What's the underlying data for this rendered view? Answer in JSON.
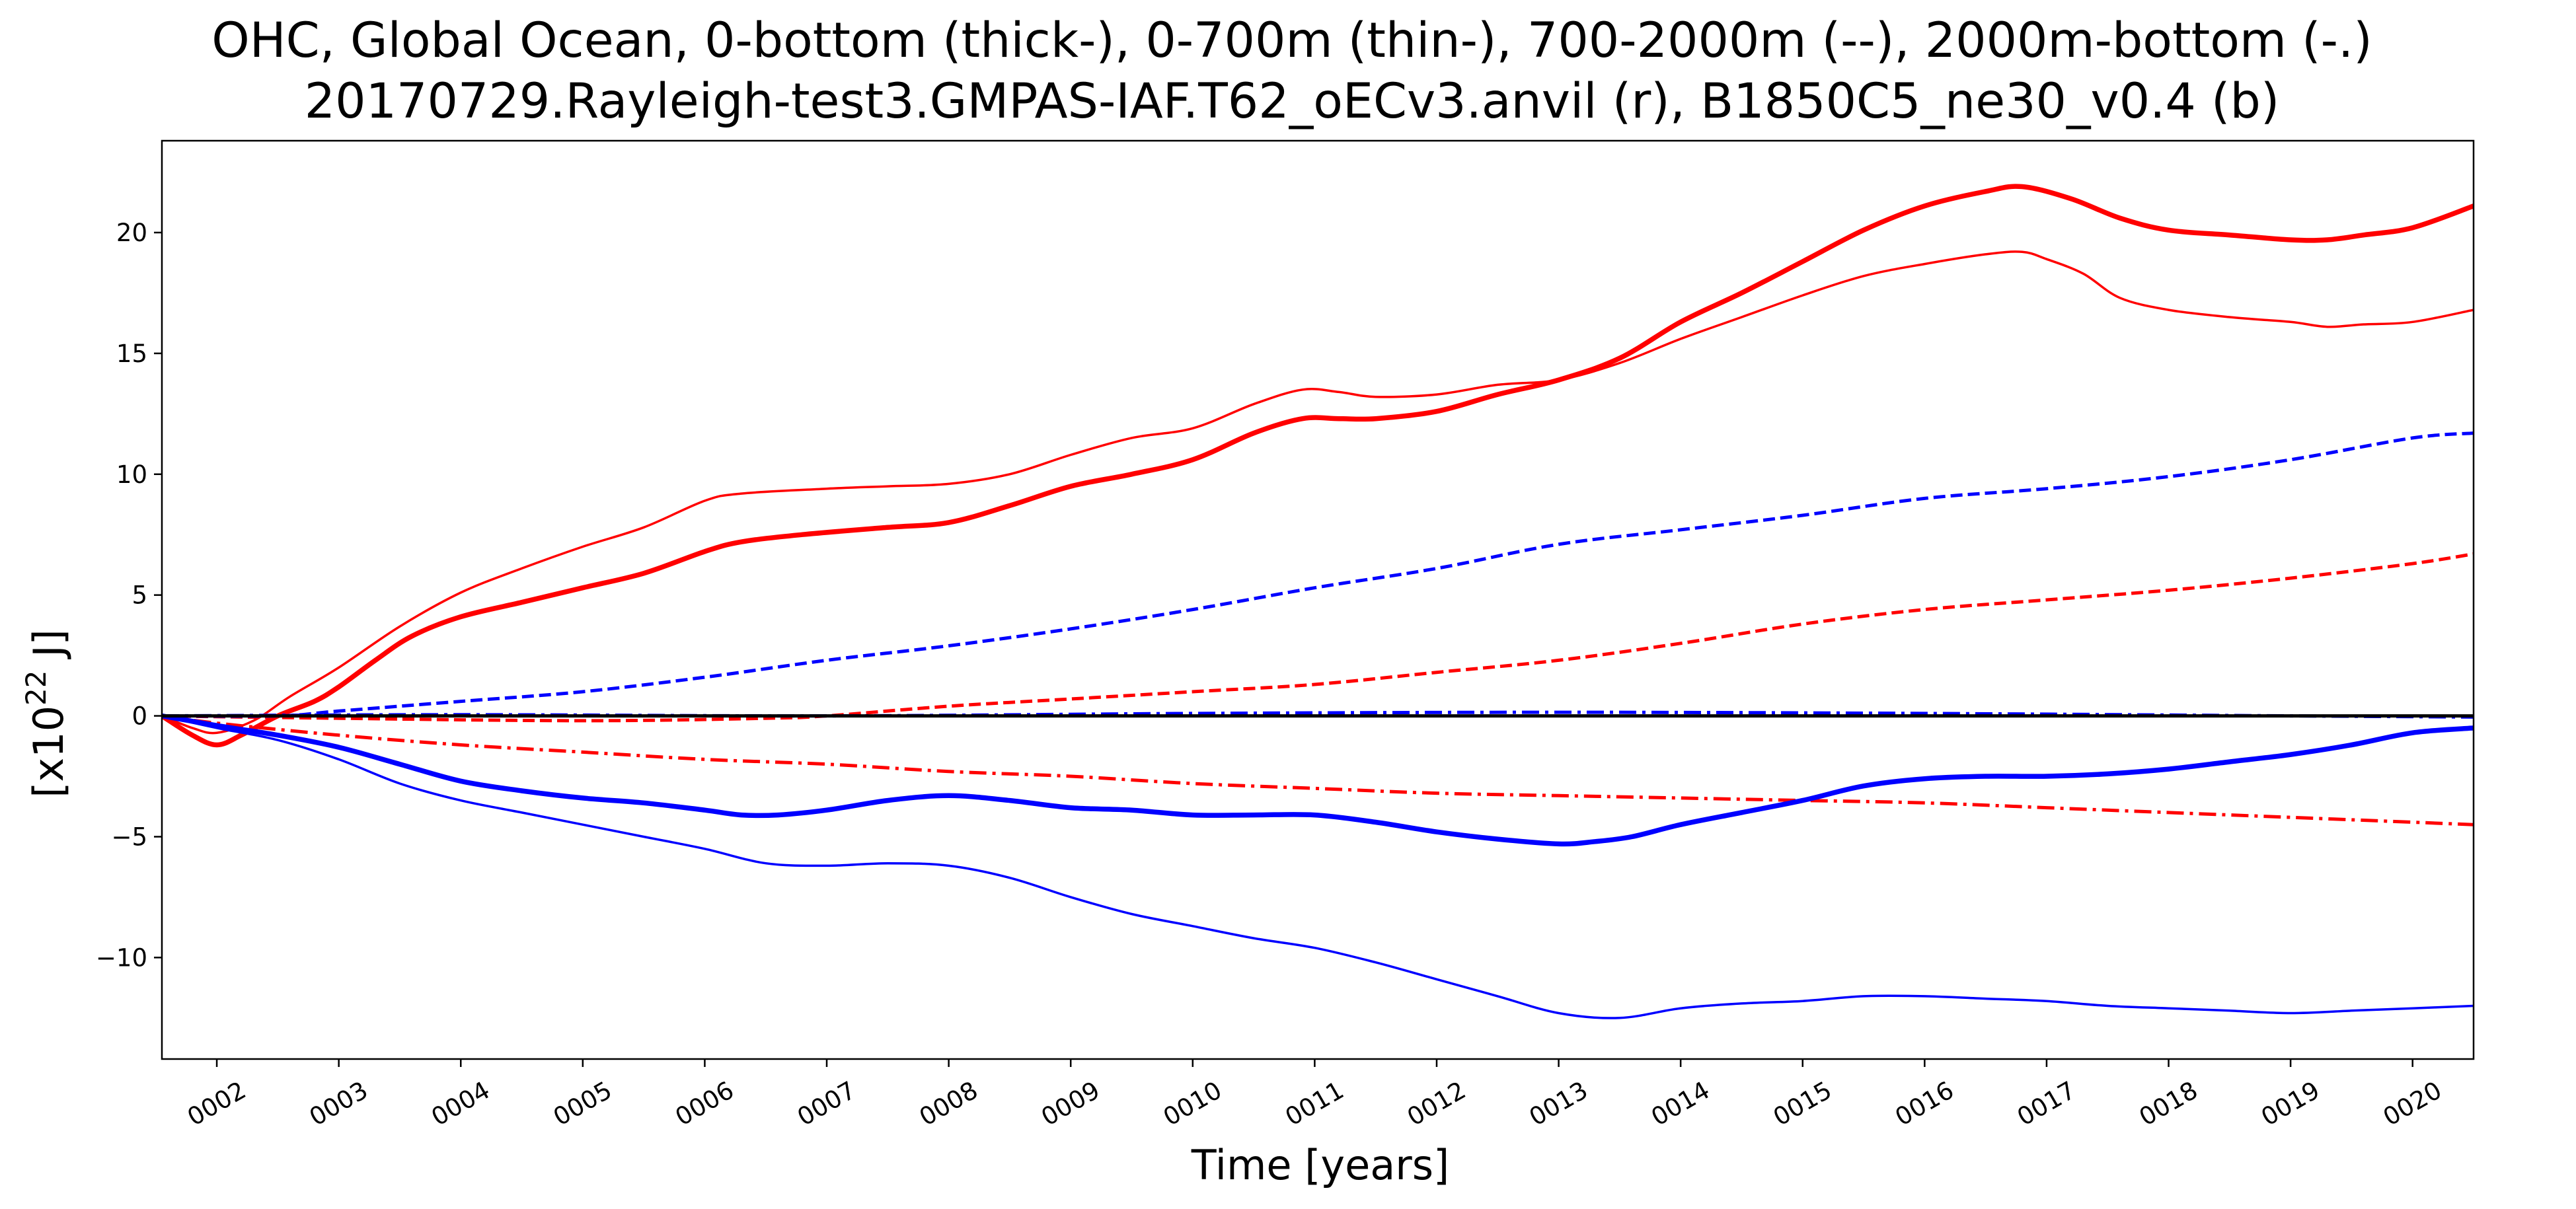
{
  "chart_data": {
    "type": "line",
    "title": "OHC, Global Ocean, 0-bottom (thick-), 0-700m (thin-), 700-2000m (--), 2000m-bottom (-.)",
    "subtitle": "20170729.Rayleigh-test3.GMPAS-IAF.T62_oECv3.anvil (r), B1850C5_ne30_v0.4 (b)",
    "xlabel": "Time [years]",
    "ylabel_base": "[x10",
    "ylabel_exp": "22",
    "ylabel_unit": " J]",
    "xlim": [
      1.55,
      20.5
    ],
    "ylim": [
      -14.2,
      23.8
    ],
    "x_ticks": [
      2,
      3,
      4,
      5,
      6,
      7,
      8,
      9,
      10,
      11,
      12,
      13,
      14,
      15,
      16,
      17,
      18,
      19,
      20
    ],
    "x_tick_labels": [
      "0002",
      "0003",
      "0004",
      "0005",
      "0006",
      "0007",
      "0008",
      "0009",
      "0010",
      "0011",
      "0012",
      "0013",
      "0014",
      "0015",
      "0016",
      "0017",
      "0018",
      "0019",
      "0020"
    ],
    "y_ticks": [
      -10,
      -5,
      0,
      5,
      10,
      15,
      20
    ],
    "y_tick_labels": [
      "−10",
      "−5",
      "0",
      "5",
      "10",
      "15",
      "20"
    ],
    "grid": false,
    "legend": "none",
    "colors": {
      "run_r": "#ff0000",
      "run_b": "#0000ff",
      "zero_line": "#000000"
    },
    "zero_line": {
      "y": 0
    },
    "series": [
      {
        "color": "#ff0000",
        "style": "solid",
        "weight": "thick",
        "x": [
          1.55,
          1.8,
          2.0,
          2.2,
          2.5,
          2.8,
          3.0,
          3.3,
          3.6,
          4.0,
          4.5,
          5.0,
          5.5,
          6.0,
          6.3,
          6.8,
          7.5,
          8.0,
          8.5,
          9.0,
          9.5,
          10.0,
          10.5,
          10.9,
          11.2,
          11.5,
          12.0,
          12.5,
          13.0,
          13.5,
          14.0,
          14.5,
          15.0,
          15.5,
          16.0,
          16.5,
          16.8,
          17.2,
          17.6,
          18.0,
          18.5,
          19.0,
          19.3,
          19.6,
          20.0,
          20.5
        ],
        "y": [
          0,
          -0.8,
          -1.2,
          -0.8,
          0,
          0.6,
          1.2,
          2.3,
          3.3,
          4.1,
          4.7,
          5.3,
          5.9,
          6.8,
          7.2,
          7.5,
          7.8,
          8.0,
          8.7,
          9.5,
          10.0,
          10.6,
          11.7,
          12.3,
          12.3,
          12.3,
          12.6,
          13.3,
          13.9,
          14.8,
          16.3,
          17.5,
          18.8,
          20.1,
          21.1,
          21.7,
          21.9,
          21.4,
          20.6,
          20.1,
          19.9,
          19.7,
          19.7,
          19.9,
          20.2,
          21.1
        ]
      },
      {
        "color": "#ff0000",
        "style": "solid",
        "weight": "thin",
        "x": [
          1.55,
          1.8,
          2.0,
          2.3,
          2.6,
          3.0,
          3.5,
          4.0,
          4.5,
          5.0,
          5.5,
          6.0,
          6.3,
          7.0,
          7.5,
          8.0,
          8.5,
          9.0,
          9.5,
          10.0,
          10.5,
          10.9,
          11.2,
          11.5,
          12.0,
          12.5,
          13.0,
          13.5,
          14.0,
          14.5,
          15.0,
          15.5,
          16.0,
          16.5,
          16.8,
          17.0,
          17.3,
          17.6,
          18.0,
          18.5,
          19.0,
          19.3,
          19.6,
          20.0,
          20.5
        ],
        "y": [
          0,
          -0.5,
          -0.7,
          -0.2,
          0.8,
          2.0,
          3.7,
          5.1,
          6.1,
          7.0,
          7.8,
          8.9,
          9.2,
          9.4,
          9.5,
          9.6,
          10.0,
          10.8,
          11.5,
          11.9,
          12.9,
          13.5,
          13.4,
          13.2,
          13.3,
          13.7,
          13.9,
          14.6,
          15.6,
          16.5,
          17.4,
          18.2,
          18.7,
          19.1,
          19.2,
          18.9,
          18.3,
          17.3,
          16.8,
          16.5,
          16.3,
          16.1,
          16.2,
          16.3,
          16.8
        ]
      },
      {
        "color": "#ff0000",
        "style": "dashed",
        "weight": "normal",
        "x": [
          1.55,
          3.0,
          5.0,
          6.5,
          7.0,
          8.0,
          9.0,
          10.0,
          11.0,
          12.0,
          13.0,
          14.0,
          15.0,
          16.0,
          17.0,
          18.0,
          19.0,
          20.0,
          20.5
        ],
        "y": [
          0,
          -0.1,
          -0.2,
          -0.1,
          0,
          0.4,
          0.7,
          1.0,
          1.3,
          1.8,
          2.3,
          3.0,
          3.8,
          4.4,
          4.8,
          5.2,
          5.7,
          6.3,
          6.7
        ]
      },
      {
        "color": "#ff0000",
        "style": "dashdot",
        "weight": "normal",
        "x": [
          1.55,
          2.0,
          3.0,
          4.0,
          5.0,
          6.0,
          7.0,
          8.0,
          9.0,
          10.0,
          11.0,
          12.0,
          13.0,
          14.0,
          15.0,
          16.0,
          17.0,
          18.0,
          19.0,
          20.0,
          20.5
        ],
        "y": [
          0,
          -0.3,
          -0.8,
          -1.2,
          -1.5,
          -1.8,
          -2.0,
          -2.3,
          -2.5,
          -2.8,
          -3.0,
          -3.2,
          -3.3,
          -3.4,
          -3.5,
          -3.6,
          -3.8,
          -4.0,
          -4.2,
          -4.4,
          -4.5
        ]
      },
      {
        "color": "#0000ff",
        "style": "solid",
        "weight": "thick",
        "x": [
          1.55,
          2.0,
          2.5,
          3.0,
          3.5,
          4.0,
          4.5,
          5.0,
          5.5,
          6.0,
          6.3,
          6.6,
          7.0,
          7.5,
          8.0,
          8.5,
          9.0,
          9.5,
          10.0,
          10.5,
          11.0,
          11.5,
          12.0,
          12.5,
          13.0,
          13.3,
          13.6,
          14.0,
          14.5,
          15.0,
          15.5,
          16.0,
          16.5,
          17.0,
          17.5,
          18.0,
          18.5,
          19.0,
          19.5,
          20.0,
          20.5
        ],
        "y": [
          0,
          -0.4,
          -0.8,
          -1.3,
          -2.0,
          -2.7,
          -3.1,
          -3.4,
          -3.6,
          -3.9,
          -4.1,
          -4.1,
          -3.9,
          -3.5,
          -3.3,
          -3.5,
          -3.8,
          -3.9,
          -4.1,
          -4.1,
          -4.1,
          -4.4,
          -4.8,
          -5.1,
          -5.3,
          -5.2,
          -5.0,
          -4.5,
          -4.0,
          -3.5,
          -2.9,
          -2.6,
          -2.5,
          -2.5,
          -2.4,
          -2.2,
          -1.9,
          -1.6,
          -1.2,
          -0.7,
          -0.5
        ]
      },
      {
        "color": "#0000ff",
        "style": "solid",
        "weight": "thin",
        "x": [
          1.55,
          2.0,
          2.5,
          3.0,
          3.5,
          4.0,
          4.5,
          5.0,
          5.5,
          6.0,
          6.5,
          7.0,
          7.5,
          8.0,
          8.5,
          9.0,
          9.5,
          10.0,
          10.5,
          11.0,
          11.5,
          12.0,
          12.5,
          13.0,
          13.5,
          14.0,
          14.5,
          15.0,
          15.5,
          16.0,
          16.5,
          17.0,
          17.5,
          18.0,
          18.5,
          19.0,
          19.5,
          20.0,
          20.5
        ],
        "y": [
          0,
          -0.5,
          -1.0,
          -1.8,
          -2.8,
          -3.5,
          -4.0,
          -4.5,
          -5.0,
          -5.5,
          -6.1,
          -6.2,
          -6.1,
          -6.2,
          -6.7,
          -7.5,
          -8.2,
          -8.7,
          -9.2,
          -9.6,
          -10.2,
          -10.9,
          -11.6,
          -12.3,
          -12.5,
          -12.1,
          -11.9,
          -11.8,
          -11.6,
          -11.6,
          -11.7,
          -11.8,
          -12.0,
          -12.1,
          -12.2,
          -12.3,
          -12.2,
          -12.1,
          -12.0
        ]
      },
      {
        "color": "#0000ff",
        "style": "dashed",
        "weight": "normal",
        "x": [
          1.55,
          2.5,
          3.0,
          4.0,
          5.0,
          6.0,
          7.0,
          8.0,
          9.0,
          10.0,
          11.0,
          12.0,
          13.0,
          14.0,
          15.0,
          16.0,
          17.0,
          18.0,
          19.0,
          20.0,
          20.5
        ],
        "y": [
          0,
          0,
          0.2,
          0.6,
          1.0,
          1.6,
          2.3,
          2.9,
          3.6,
          4.4,
          5.3,
          6.1,
          7.1,
          7.7,
          8.3,
          9.0,
          9.4,
          9.9,
          10.6,
          11.5,
          11.7
        ]
      },
      {
        "color": "#0000ff",
        "style": "dashdot",
        "weight": "normal",
        "x": [
          1.55,
          4.0,
          7.0,
          10.0,
          13.0,
          16.0,
          19.0,
          20.5
        ],
        "y": [
          0,
          0.05,
          0,
          0.1,
          0.15,
          0.1,
          0,
          -0.05
        ]
      }
    ]
  }
}
